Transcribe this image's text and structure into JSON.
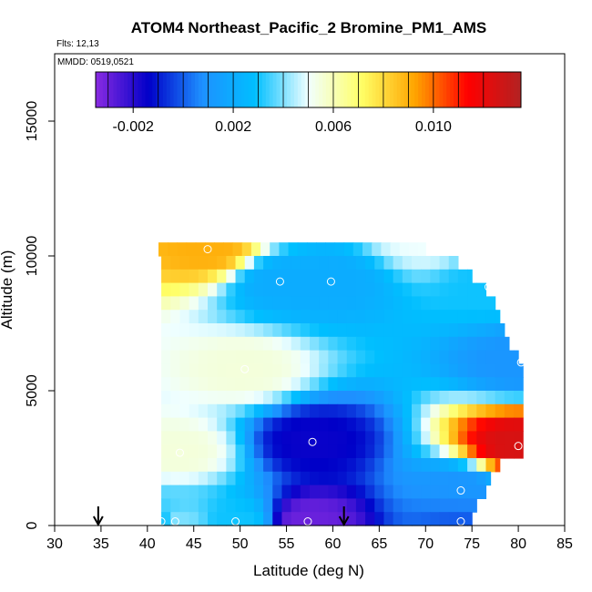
{
  "chart_data": {
    "type": "heatmap",
    "title": "ATOM4 Northeast_Pacific_2 Bromine_PM1_AMS",
    "notes": {
      "flights": "Flts: 12,13",
      "dates": "MMDD: 0519,0521"
    },
    "xlabel": "Latitude (deg N)",
    "ylabel": "Altitude (m)",
    "xlim": [
      30,
      85
    ],
    "ylim": [
      0,
      17500
    ],
    "x_ticks": [
      30,
      35,
      40,
      45,
      50,
      55,
      60,
      65,
      70,
      75,
      80,
      85
    ],
    "x_tick_labels": [
      "30",
      "35",
      "40",
      "45",
      "50",
      "55",
      "60",
      "65",
      "70",
      "75",
      "80",
      "85"
    ],
    "y_ticks": [
      0,
      5000,
      10000,
      15000
    ],
    "y_tick_labels": [
      "0",
      "5000",
      "10000",
      "15000"
    ],
    "colorbar": {
      "range": [
        -0.0035,
        0.0135
      ],
      "ticks": [
        -0.002,
        0.002,
        0.006,
        0.01
      ],
      "tick_labels": [
        "-0.002",
        "0.002",
        "0.006",
        "0.010"
      ],
      "colors": [
        "#8a2be2",
        "#0000c8",
        "#1e90ff",
        "#00bfff",
        "#f0ffff",
        "#ffff66",
        "#ffa500",
        "#ff0000",
        "#b22222"
      ]
    },
    "grid": false,
    "arrows_at_latitude": [
      34.7,
      61.2
    ],
    "profile": [
      {
        "alt": 10250,
        "lat_start": 41.2,
        "lat_end": 70.0
      },
      {
        "alt": 9750,
        "lat_start": 41.5,
        "lat_end": 73.5
      },
      {
        "alt": 9250,
        "lat_start": 41.5,
        "lat_end": 75.0
      },
      {
        "alt": 8750,
        "lat_start": 41.5,
        "lat_end": 76.5
      },
      {
        "alt": 8250,
        "lat_start": 41.5,
        "lat_end": 77.5
      },
      {
        "alt": 7750,
        "lat_start": 41.5,
        "lat_end": 78.0
      },
      {
        "alt": 7250,
        "lat_start": 41.5,
        "lat_end": 78.5
      },
      {
        "alt": 6750,
        "lat_start": 41.5,
        "lat_end": 79.0
      },
      {
        "alt": 6250,
        "lat_start": 41.5,
        "lat_end": 80.0
      },
      {
        "alt": 5750,
        "lat_start": 41.5,
        "lat_end": 80.5
      },
      {
        "alt": 5250,
        "lat_start": 41.5,
        "lat_end": 80.5
      },
      {
        "alt": 4750,
        "lat_start": 41.5,
        "lat_end": 80.5
      },
      {
        "alt": 4250,
        "lat_start": 41.5,
        "lat_end": 80.5
      },
      {
        "alt": 3750,
        "lat_start": 41.5,
        "lat_end": 80.5
      },
      {
        "alt": 3250,
        "lat_start": 41.5,
        "lat_end": 80.5
      },
      {
        "alt": 2750,
        "lat_start": 41.5,
        "lat_end": 80.5
      },
      {
        "alt": 2250,
        "lat_start": 41.5,
        "lat_end": 78.0
      },
      {
        "alt": 1750,
        "lat_start": 41.5,
        "lat_end": 77.0
      },
      {
        "alt": 1250,
        "lat_start": 41.5,
        "lat_end": 76.5
      },
      {
        "alt": 750,
        "lat_start": 41.5,
        "lat_end": 75.5
      },
      {
        "alt": 250,
        "lat_start": 41.5,
        "lat_end": 75.0
      }
    ],
    "samples": [
      {
        "lat": 41.5,
        "alt": 150,
        "value": 0.003
      },
      {
        "lat": 43.0,
        "alt": 150,
        "value": 0.004
      },
      {
        "lat": 49.5,
        "alt": 150,
        "value": 0.003
      },
      {
        "lat": 57.3,
        "alt": 150,
        "value": -0.003
      },
      {
        "lat": 73.8,
        "alt": 150,
        "value": 0.0
      },
      {
        "lat": 73.8,
        "alt": 1300,
        "value": 0.001
      },
      {
        "lat": 57.8,
        "alt": 3100,
        "value": -0.0015
      },
      {
        "lat": 80.0,
        "alt": 2950,
        "value": 0.0125
      },
      {
        "lat": 43.5,
        "alt": 2700,
        "value": 0.0055
      },
      {
        "lat": 50.5,
        "alt": 5800,
        "value": 0.0055
      },
      {
        "lat": 80.3,
        "alt": 6050,
        "value": 0.001
      },
      {
        "lat": 54.3,
        "alt": 9050,
        "value": 0.002
      },
      {
        "lat": 59.8,
        "alt": 9050,
        "value": 0.002
      },
      {
        "lat": 76.8,
        "alt": 8850,
        "value": 0.003
      },
      {
        "lat": 46.5,
        "alt": 10250,
        "value": 0.009
      },
      {
        "lat": 69.9,
        "alt": 10700,
        "value": 0.005
      }
    ]
  }
}
